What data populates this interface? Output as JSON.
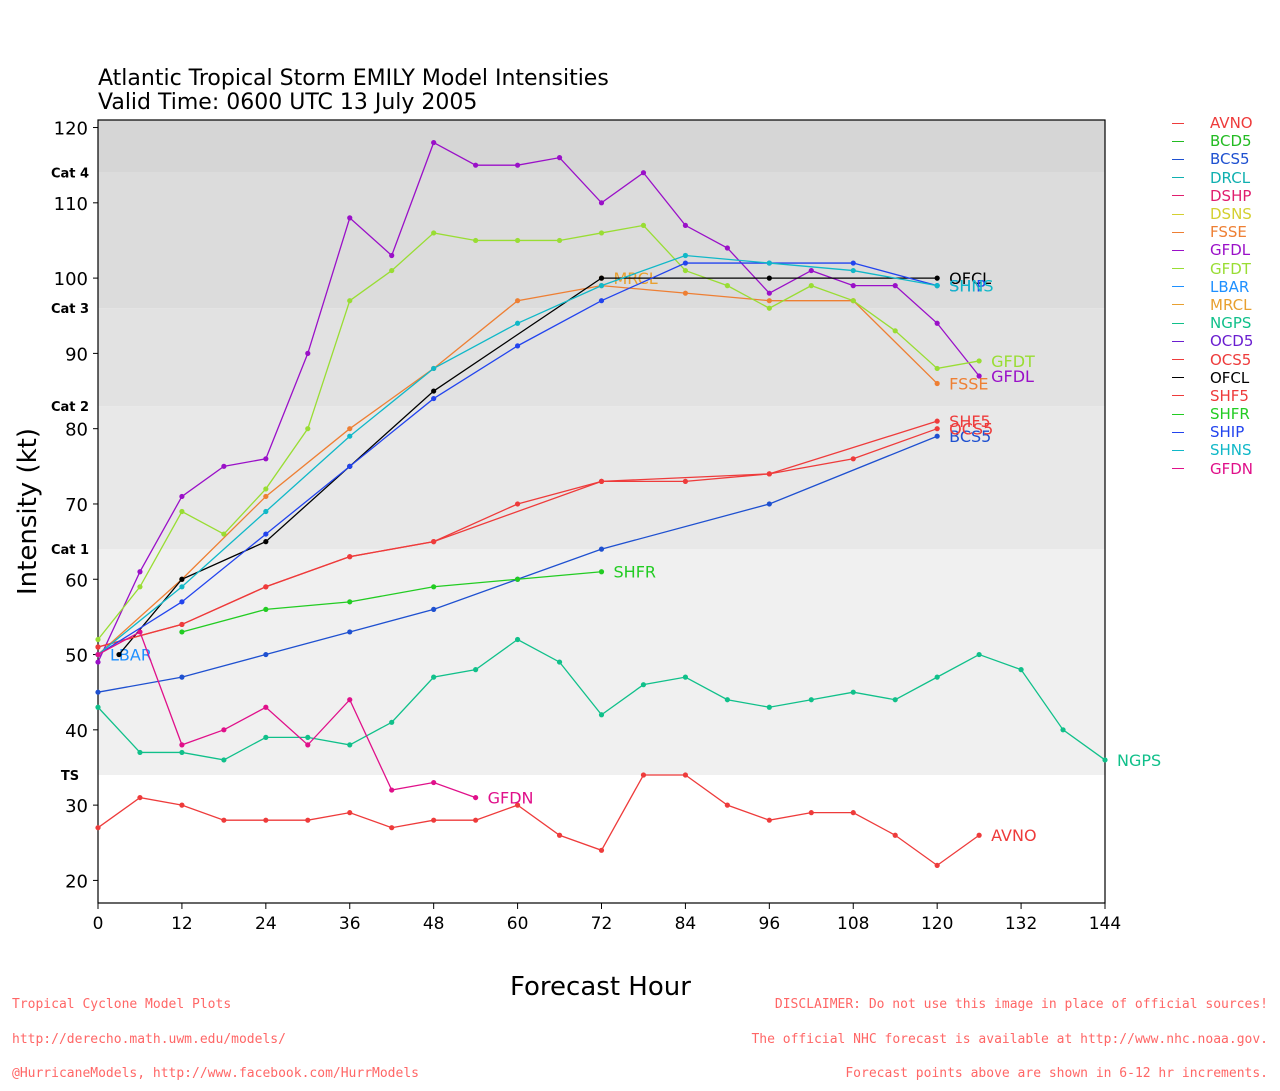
{
  "chart_data": {
    "type": "line",
    "title": "Atlantic Tropical Storm EMILY Model Intensities",
    "subtitle": "Valid Time: 0600 UTC 13 July 2005",
    "xlabel": "Forecast Hour",
    "ylabel": "Intensity (kt)",
    "xlim": [
      0,
      144
    ],
    "ylim": [
      17,
      121
    ],
    "x_ticks": [
      0,
      12,
      24,
      36,
      48,
      60,
      72,
      84,
      96,
      108,
      120,
      132,
      144
    ],
    "y_ticks": [
      20,
      30,
      40,
      50,
      60,
      70,
      80,
      90,
      100,
      110,
      120
    ],
    "categories": [
      {
        "label": "TS",
        "min": 34,
        "max": 64,
        "color": "#f0f0f0"
      },
      {
        "label": "Cat 1",
        "min": 64,
        "max": 83,
        "color": "#e8e8e8"
      },
      {
        "label": "Cat 2",
        "min": 83,
        "max": 96,
        "color": "#e2e2e2"
      },
      {
        "label": "Cat 3",
        "min": 96,
        "max": 114,
        "color": "#dcdcdc"
      },
      {
        "label": "Cat 4",
        "min": 114,
        "max": 121,
        "color": "#d6d6d6"
      }
    ],
    "legend_position": "right",
    "series": [
      {
        "name": "AVNO",
        "color": "#ee3b3b",
        "label": "AVNO",
        "points": [
          [
            0,
            27
          ],
          [
            6,
            31
          ],
          [
            12,
            30
          ],
          [
            18,
            28
          ],
          [
            24,
            28
          ],
          [
            30,
            28
          ],
          [
            36,
            29
          ],
          [
            42,
            27
          ],
          [
            48,
            28
          ],
          [
            54,
            28
          ],
          [
            60,
            30
          ],
          [
            66,
            26
          ],
          [
            72,
            24
          ],
          [
            78,
            34
          ],
          [
            84,
            34
          ],
          [
            90,
            30
          ],
          [
            96,
            28
          ],
          [
            102,
            29
          ],
          [
            108,
            29
          ],
          [
            114,
            26
          ],
          [
            120,
            22
          ],
          [
            126,
            26
          ]
        ]
      },
      {
        "name": "BCD5",
        "color": "#22bb22",
        "label": "",
        "points": []
      },
      {
        "name": "BCS5",
        "color": "#1e50d0",
        "label": "BCS5",
        "points": [
          [
            0,
            45
          ],
          [
            12,
            47
          ],
          [
            24,
            50
          ],
          [
            36,
            53
          ],
          [
            48,
            56
          ],
          [
            60,
            60
          ],
          [
            72,
            64
          ],
          [
            96,
            70
          ],
          [
            120,
            79
          ]
        ]
      },
      {
        "name": "DRCL",
        "color": "#10b0b0",
        "label": "",
        "points": []
      },
      {
        "name": "DSHP",
        "color": "#e01e6e",
        "label": "",
        "points": []
      },
      {
        "name": "DSNS",
        "color": "#d4d030",
        "label": "",
        "points": []
      },
      {
        "name": "FSSE",
        "color": "#ee7f33",
        "label": "FSSE",
        "points": [
          [
            0,
            50
          ],
          [
            12,
            60
          ],
          [
            24,
            71
          ],
          [
            36,
            80
          ],
          [
            48,
            88
          ],
          [
            60,
            97
          ],
          [
            72,
            99
          ],
          [
            84,
            98
          ],
          [
            96,
            97
          ],
          [
            108,
            97
          ],
          [
            120,
            86
          ]
        ]
      },
      {
        "name": "GFDL",
        "color": "#9a10c8",
        "label": "GFDL",
        "points": [
          [
            0,
            49
          ],
          [
            6,
            61
          ],
          [
            12,
            71
          ],
          [
            18,
            75
          ],
          [
            24,
            76
          ],
          [
            30,
            90
          ],
          [
            36,
            108
          ],
          [
            42,
            103
          ],
          [
            48,
            118
          ],
          [
            54,
            115
          ],
          [
            60,
            115
          ],
          [
            66,
            116
          ],
          [
            72,
            110
          ],
          [
            78,
            114
          ],
          [
            84,
            107
          ],
          [
            90,
            104
          ],
          [
            96,
            98
          ],
          [
            102,
            101
          ],
          [
            108,
            99
          ],
          [
            114,
            99
          ],
          [
            120,
            94
          ],
          [
            126,
            87
          ]
        ]
      },
      {
        "name": "GFDT",
        "color": "#99dd33",
        "label": "GFDT",
        "points": [
          [
            0,
            52
          ],
          [
            6,
            59
          ],
          [
            12,
            69
          ],
          [
            18,
            66
          ],
          [
            24,
            72
          ],
          [
            30,
            80
          ],
          [
            36,
            97
          ],
          [
            42,
            101
          ],
          [
            48,
            106
          ],
          [
            54,
            105
          ],
          [
            60,
            105
          ],
          [
            66,
            105
          ],
          [
            72,
            106
          ],
          [
            78,
            107
          ],
          [
            84,
            101
          ],
          [
            90,
            99
          ],
          [
            96,
            96
          ],
          [
            102,
            99
          ],
          [
            108,
            97
          ],
          [
            114,
            93
          ],
          [
            120,
            88
          ],
          [
            126,
            89
          ]
        ]
      },
      {
        "name": "LBAR",
        "color": "#1e90ff",
        "label": "LBAR",
        "points": [
          [
            0,
            50
          ]
        ]
      },
      {
        "name": "MRCL",
        "color": "#e8a030",
        "label": "MRCL",
        "points": [
          [
            72,
            100
          ]
        ]
      },
      {
        "name": "NGPS",
        "color": "#10c08a",
        "label": "NGPS",
        "points": [
          [
            0,
            43
          ],
          [
            6,
            37
          ],
          [
            12,
            37
          ],
          [
            18,
            36
          ],
          [
            24,
            39
          ],
          [
            30,
            39
          ],
          [
            36,
            38
          ],
          [
            42,
            41
          ],
          [
            48,
            47
          ],
          [
            54,
            48
          ],
          [
            60,
            52
          ],
          [
            66,
            49
          ],
          [
            72,
            42
          ],
          [
            78,
            46
          ],
          [
            84,
            47
          ],
          [
            90,
            44
          ],
          [
            96,
            43
          ],
          [
            102,
            44
          ],
          [
            108,
            45
          ],
          [
            114,
            44
          ],
          [
            120,
            47
          ],
          [
            126,
            50
          ],
          [
            132,
            48
          ],
          [
            138,
            40
          ],
          [
            144,
            36
          ]
        ]
      },
      {
        "name": "OCD5",
        "color": "#6a1ed0",
        "label": "",
        "points": []
      },
      {
        "name": "OCS5",
        "color": "#ee3b3b",
        "label": "OCS5",
        "points": [
          [
            0,
            51
          ],
          [
            12,
            54
          ],
          [
            24,
            59
          ],
          [
            36,
            63
          ],
          [
            48,
            65
          ],
          [
            60,
            70
          ],
          [
            72,
            73
          ],
          [
            84,
            73
          ],
          [
            96,
            74
          ],
          [
            108,
            76
          ],
          [
            120,
            80
          ]
        ]
      },
      {
        "name": "OFCL",
        "color": "#000000",
        "label": "OFCL",
        "points": [
          [
            3,
            50
          ],
          [
            12,
            60
          ],
          [
            24,
            65
          ],
          [
            36,
            75
          ],
          [
            48,
            85
          ],
          [
            72,
            100
          ],
          [
            96,
            100
          ],
          [
            120,
            100
          ]
        ]
      },
      {
        "name": "SHF5",
        "color": "#ee3b3b",
        "label": "SHF5",
        "points": [
          [
            0,
            51
          ],
          [
            12,
            54
          ],
          [
            24,
            59
          ],
          [
            36,
            63
          ],
          [
            48,
            65
          ],
          [
            72,
            73
          ],
          [
            96,
            74
          ],
          [
            120,
            81
          ]
        ]
      },
      {
        "name": "SHFR",
        "color": "#22cc22",
        "label": "SHFR",
        "points": [
          [
            12,
            53
          ],
          [
            24,
            56
          ],
          [
            36,
            57
          ],
          [
            48,
            59
          ],
          [
            60,
            60
          ],
          [
            72,
            61
          ]
        ]
      },
      {
        "name": "SHIP",
        "color": "#2244ee",
        "label": "SHIP",
        "points": [
          [
            0,
            50
          ],
          [
            12,
            57
          ],
          [
            24,
            66
          ],
          [
            36,
            75
          ],
          [
            48,
            84
          ],
          [
            60,
            91
          ],
          [
            72,
            97
          ],
          [
            84,
            102
          ],
          [
            96,
            102
          ],
          [
            108,
            102
          ],
          [
            120,
            99
          ]
        ]
      },
      {
        "name": "SHNS",
        "color": "#10b8c8",
        "label": "SHNS",
        "points": [
          [
            0,
            50
          ],
          [
            12,
            59
          ],
          [
            24,
            69
          ],
          [
            36,
            79
          ],
          [
            48,
            88
          ],
          [
            60,
            94
          ],
          [
            72,
            99
          ],
          [
            84,
            103
          ],
          [
            96,
            102
          ],
          [
            108,
            101
          ],
          [
            120,
            99
          ]
        ]
      },
      {
        "name": "GFDN",
        "color": "#e0108a",
        "label": "GFDN",
        "points": [
          [
            0,
            50
          ],
          [
            6,
            53
          ],
          [
            12,
            38
          ],
          [
            18,
            40
          ],
          [
            24,
            43
          ],
          [
            30,
            38
          ],
          [
            36,
            44
          ],
          [
            42,
            32
          ],
          [
            48,
            33
          ],
          [
            54,
            31
          ]
        ]
      }
    ]
  },
  "footer": {
    "left_lines": [
      "Tropical Cyclone Model Plots",
      "http://derecho.math.uwm.edu/models/",
      "@HurricaneModels, http://www.facebook.com/HurrModels"
    ],
    "right_lines": [
      "DISCLAIMER: Do not use this image in place of official sources!",
      "The official NHC forecast is available at http://www.nhc.noaa.gov.",
      "Forecast points above are shown in 6-12 hr increments."
    ]
  }
}
